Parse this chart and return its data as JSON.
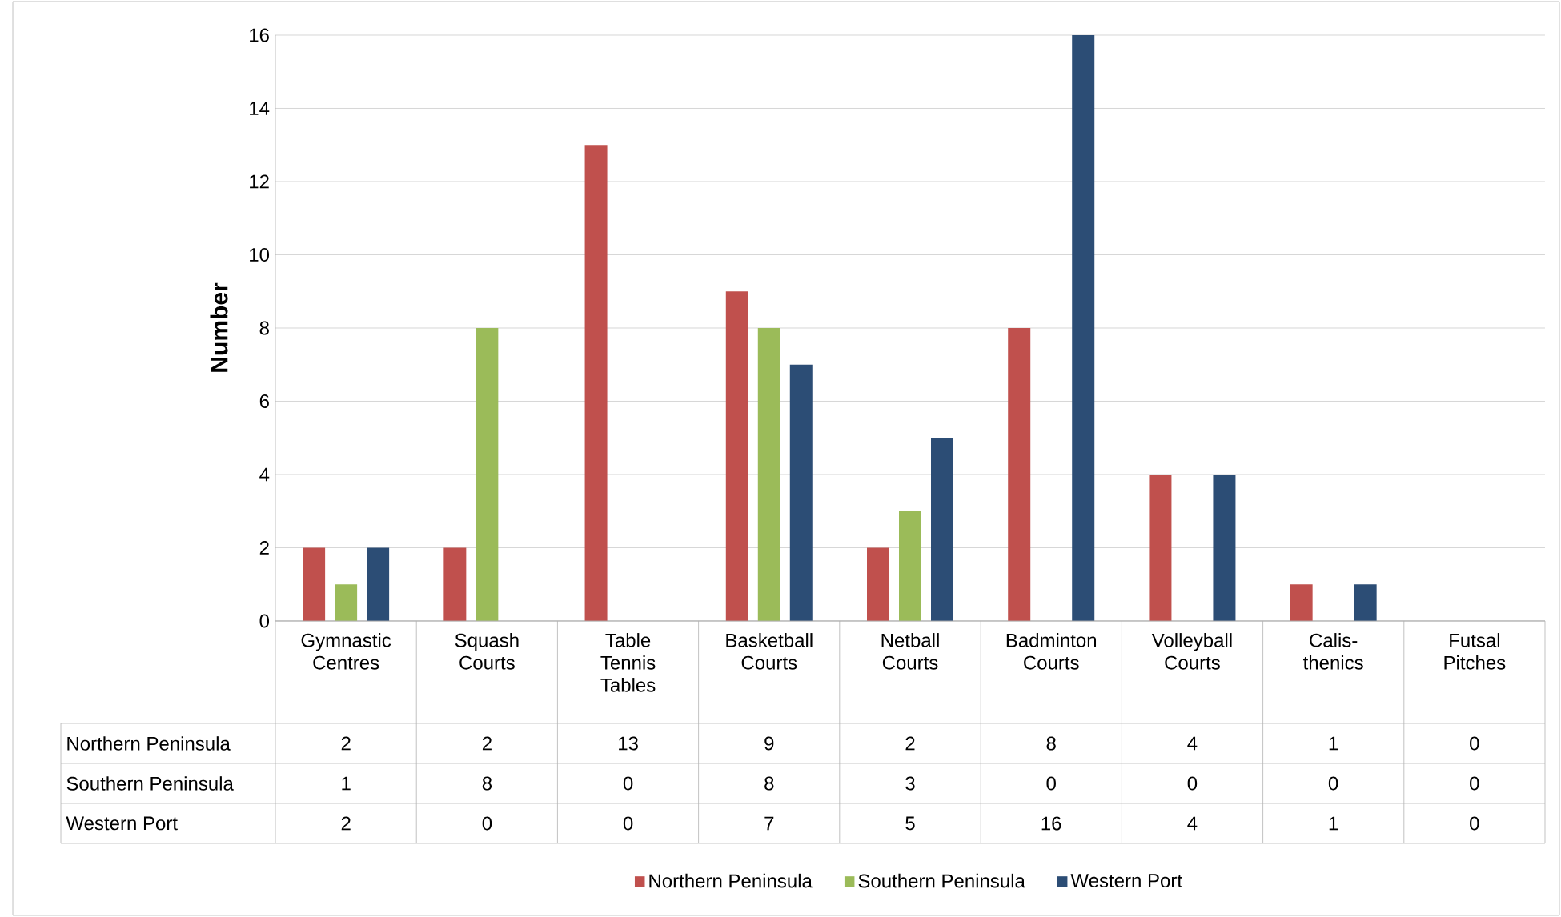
{
  "chart_data": {
    "type": "bar",
    "ylabel": "Number",
    "categories": [
      "Gymnastic Centres",
      "Squash Courts",
      "Table Tennis Tables",
      "Basketball Courts",
      "Netball Courts",
      "Badminton Courts",
      "Volleyball Courts",
      "Calis-thenics",
      "Futsal Pitches"
    ],
    "series": [
      {
        "name": "Northern Peninsula",
        "color": "#c0504d",
        "values": [
          2,
          2,
          13,
          9,
          2,
          8,
          4,
          1,
          0
        ]
      },
      {
        "name": "Southern Peninsula",
        "color": "#9bbb59",
        "values": [
          1,
          8,
          0,
          8,
          3,
          0,
          0,
          0,
          0
        ]
      },
      {
        "name": "Western Port",
        "color": "#2c4d75",
        "values": [
          2,
          0,
          0,
          7,
          5,
          16,
          4,
          1,
          0
        ]
      }
    ],
    "ylim": [
      0,
      16
    ],
    "yticks": [
      0,
      2,
      4,
      6,
      8,
      10,
      12,
      14,
      16
    ],
    "grid": "y",
    "legend": "bottom",
    "data_labels": true
  }
}
